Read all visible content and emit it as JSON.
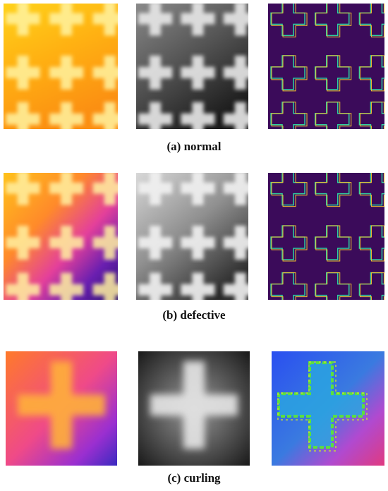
{
  "figure": {
    "rows": [
      {
        "caption": "(a) normal"
      },
      {
        "caption": "(b) defective"
      },
      {
        "caption": "(c) curling"
      }
    ]
  }
}
